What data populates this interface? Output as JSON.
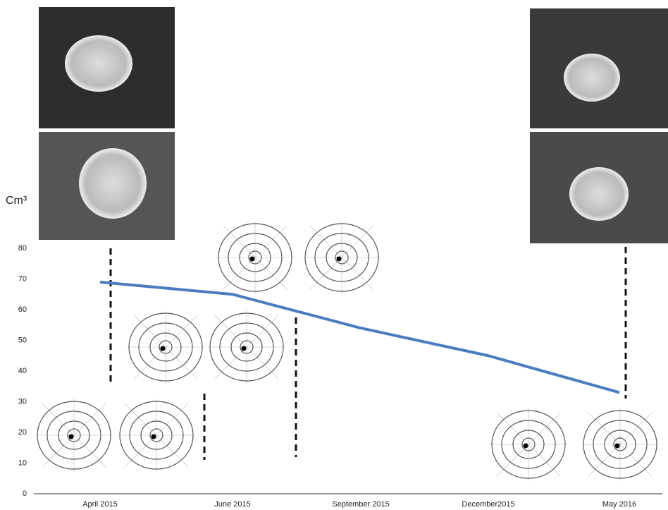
{
  "chart_data": {
    "type": "line",
    "y_label": "Cm³",
    "categories": [
      "April 2015",
      "June 2015",
      "September 2015",
      "December2015",
      "May 2016"
    ],
    "values": [
      69,
      65,
      54,
      45,
      33
    ],
    "color": "#4a7cc0",
    "ylim": [
      0,
      80
    ],
    "yticks": [
      0,
      10,
      20,
      30,
      40,
      50,
      60,
      70,
      80
    ],
    "grid": false
  }
}
